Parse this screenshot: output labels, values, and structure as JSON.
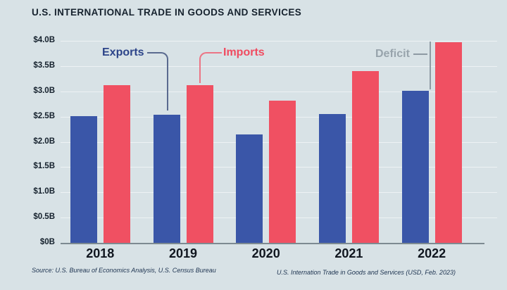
{
  "title": "U.S. INTERNATIONAL TRADE IN GOODS AND SERVICES",
  "labels": {
    "exports": "Exports",
    "imports": "Imports",
    "deficit": "Deficit"
  },
  "source_left": "Source: U.S. Bureau of Economics Analysis, U.S. Census Bureau",
  "source_right": "U.S. Internation Trade in Goods and Services (USD, Feb. 2023)",
  "colors": {
    "background": "#d8e2e6",
    "exports_bar": "#3a56a8",
    "imports_bar": "#f05062",
    "exports_label": "#2c4489",
    "imports_label": "#f04b60",
    "deficit_label": "#98a4ac",
    "title_text": "#16222e",
    "axis_line": "#7d8a91"
  },
  "chart_data": {
    "type": "bar",
    "title": "U.S. INTERNATIONAL TRADE IN GOODS AND SERVICES",
    "categories": [
      "2018",
      "2019",
      "2020",
      "2021",
      "2022"
    ],
    "series": [
      {
        "name": "Exports",
        "color": "#3a56a8",
        "values": [
          2.51,
          2.53,
          2.15,
          2.55,
          3.01
        ]
      },
      {
        "name": "Imports",
        "color": "#f05062",
        "values": [
          3.12,
          3.12,
          2.81,
          3.4,
          3.97
        ]
      }
    ],
    "xlabel": "",
    "ylabel": "",
    "ylim": [
      0,
      4.0
    ],
    "ytick_labels": [
      "$4.0B",
      "$3.5B",
      "$3.0B",
      "$2.5B",
      "$2.0B",
      "$1.5B",
      "$1.0B",
      "$0.5B",
      "$0B"
    ],
    "grid": true,
    "legend_position": "inline-annotations",
    "annotations": [
      {
        "text": "Exports",
        "points_to": "Exports bar 2019"
      },
      {
        "text": "Imports",
        "points_to": "Imports bar 2019"
      },
      {
        "text": "Deficit",
        "points_to": "gap between Exports and Imports tops, 2022"
      }
    ]
  }
}
